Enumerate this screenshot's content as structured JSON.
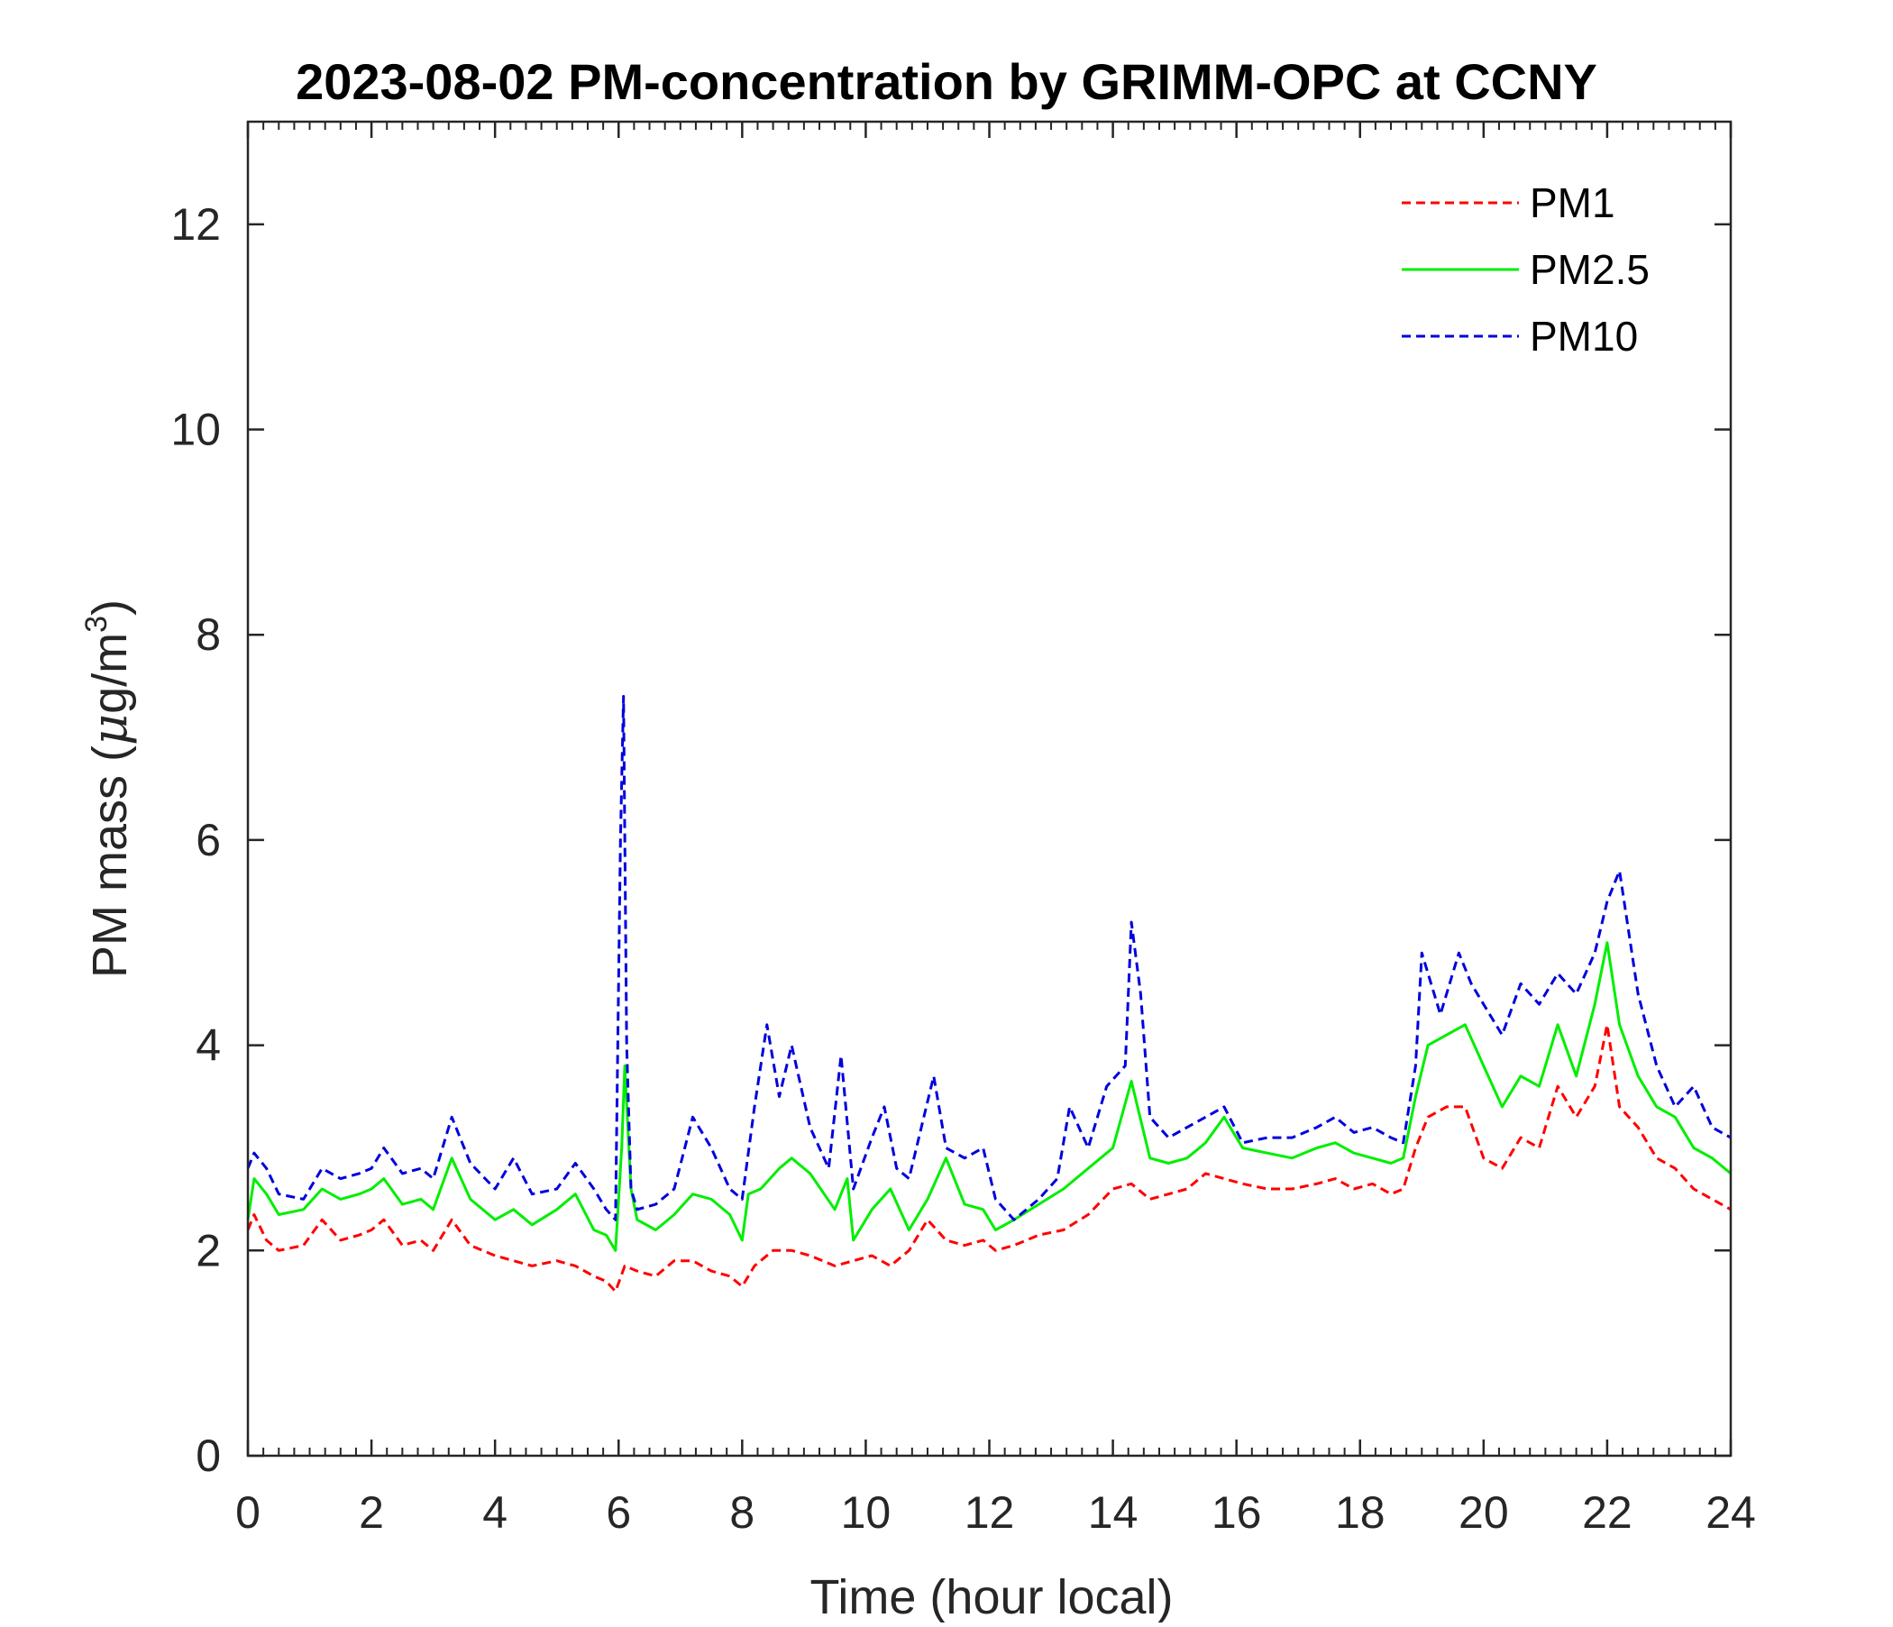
{
  "chart_data": {
    "type": "line",
    "title": "2023-08-02 PM-concentration by GRIMM-OPC at CCNY",
    "xlabel": "Time (hour local)",
    "ylabel": {
      "prefix": "PM mass (",
      "mu": "μ",
      "unit": "g/m",
      "sup": "3",
      "suffix": ")"
    },
    "xlim": [
      0,
      24
    ],
    "ylim": [
      0,
      13
    ],
    "xticks": [
      0,
      2,
      4,
      6,
      8,
      10,
      12,
      14,
      16,
      18,
      20,
      22,
      24
    ],
    "xtick_labels": [
      "0",
      "2",
      "4",
      "6",
      "8",
      "10",
      "12",
      "14",
      "16",
      "18",
      "20",
      "22",
      "24"
    ],
    "yticks": [
      0,
      2,
      4,
      6,
      8,
      10,
      12
    ],
    "ytick_labels": [
      "0",
      "2",
      "4",
      "6",
      "8",
      "10",
      "12"
    ],
    "grid": false,
    "legend_position": "top-right",
    "series": [
      {
        "name": "PM1",
        "color": "#ff0000",
        "style": "dashed",
        "x": [
          0,
          0.1,
          0.3,
          0.5,
          0.9,
          1.2,
          1.5,
          1.8,
          2.0,
          2.2,
          2.5,
          2.8,
          3.0,
          3.3,
          3.6,
          4.0,
          4.3,
          4.6,
          5.0,
          5.3,
          5.6,
          5.8,
          5.95,
          6.1,
          6.3,
          6.6,
          6.9,
          7.2,
          7.5,
          7.8,
          8.0,
          8.2,
          8.5,
          8.8,
          9.1,
          9.5,
          9.8,
          10.1,
          10.4,
          10.7,
          11.0,
          11.3,
          11.6,
          11.9,
          12.1,
          12.4,
          12.8,
          13.2,
          13.6,
          14.0,
          14.3,
          14.6,
          14.9,
          15.2,
          15.5,
          15.8,
          16.1,
          16.5,
          16.9,
          17.3,
          17.6,
          17.9,
          18.2,
          18.5,
          18.7,
          18.9,
          19.1,
          19.4,
          19.7,
          20.0,
          20.3,
          20.6,
          20.9,
          21.2,
          21.5,
          21.8,
          22.0,
          22.2,
          22.5,
          22.8,
          23.1,
          23.4,
          23.7,
          24.0
        ],
        "values": [
          2.2,
          2.35,
          2.1,
          2.0,
          2.05,
          2.3,
          2.1,
          2.15,
          2.2,
          2.3,
          2.05,
          2.1,
          2.0,
          2.3,
          2.05,
          1.95,
          1.9,
          1.85,
          1.9,
          1.85,
          1.75,
          1.7,
          1.6,
          1.85,
          1.8,
          1.75,
          1.9,
          1.9,
          1.8,
          1.75,
          1.65,
          1.85,
          2.0,
          2.0,
          1.95,
          1.85,
          1.9,
          1.95,
          1.85,
          2.0,
          2.3,
          2.1,
          2.05,
          2.1,
          2.0,
          2.05,
          2.15,
          2.2,
          2.35,
          2.6,
          2.65,
          2.5,
          2.55,
          2.6,
          2.75,
          2.7,
          2.65,
          2.6,
          2.6,
          2.65,
          2.7,
          2.6,
          2.65,
          2.55,
          2.6,
          3.0,
          3.3,
          3.4,
          3.4,
          2.9,
          2.8,
          3.1,
          3.0,
          3.6,
          3.3,
          3.6,
          4.2,
          3.4,
          3.2,
          2.9,
          2.8,
          2.6,
          2.5,
          2.4
        ]
      },
      {
        "name": "PM2.5",
        "color": "#00ee00",
        "style": "solid",
        "x": [
          0,
          0.1,
          0.3,
          0.5,
          0.9,
          1.2,
          1.5,
          1.8,
          2.0,
          2.2,
          2.5,
          2.8,
          3.0,
          3.3,
          3.6,
          4.0,
          4.3,
          4.6,
          5.0,
          5.3,
          5.6,
          5.8,
          5.95,
          6.05,
          6.1,
          6.2,
          6.3,
          6.6,
          6.9,
          7.2,
          7.5,
          7.8,
          8.0,
          8.1,
          8.3,
          8.6,
          8.8,
          9.1,
          9.5,
          9.7,
          9.8,
          10.1,
          10.4,
          10.7,
          11.0,
          11.3,
          11.6,
          11.9,
          12.1,
          12.4,
          12.8,
          13.2,
          13.6,
          14.0,
          14.3,
          14.6,
          14.9,
          15.2,
          15.5,
          15.8,
          16.1,
          16.5,
          16.9,
          17.3,
          17.6,
          17.9,
          18.2,
          18.5,
          18.7,
          18.9,
          19.1,
          19.4,
          19.7,
          20.0,
          20.3,
          20.6,
          20.9,
          21.2,
          21.5,
          21.8,
          22.0,
          22.2,
          22.5,
          22.8,
          23.1,
          23.4,
          23.7,
          24.0
        ],
        "values": [
          2.3,
          2.7,
          2.55,
          2.35,
          2.4,
          2.6,
          2.5,
          2.55,
          2.6,
          2.7,
          2.45,
          2.5,
          2.4,
          2.9,
          2.5,
          2.3,
          2.4,
          2.25,
          2.4,
          2.55,
          2.2,
          2.15,
          2.0,
          3.0,
          3.8,
          2.6,
          2.3,
          2.2,
          2.35,
          2.55,
          2.5,
          2.35,
          2.1,
          2.55,
          2.6,
          2.8,
          2.9,
          2.75,
          2.4,
          2.7,
          2.1,
          2.4,
          2.6,
          2.2,
          2.5,
          2.9,
          2.45,
          2.4,
          2.2,
          2.3,
          2.45,
          2.6,
          2.8,
          3.0,
          3.65,
          2.9,
          2.85,
          2.9,
          3.05,
          3.3,
          3.0,
          2.95,
          2.9,
          3.0,
          3.05,
          2.95,
          2.9,
          2.85,
          2.9,
          3.5,
          4.0,
          4.1,
          4.2,
          3.8,
          3.4,
          3.7,
          3.6,
          4.2,
          3.7,
          4.4,
          5.0,
          4.2,
          3.7,
          3.4,
          3.3,
          3.0,
          2.9,
          2.75
        ]
      },
      {
        "name": "PM10",
        "color": "#0000dd",
        "style": "dashed",
        "x": [
          0,
          0.1,
          0.3,
          0.5,
          0.9,
          1.2,
          1.5,
          1.8,
          2.0,
          2.2,
          2.5,
          2.8,
          3.0,
          3.3,
          3.6,
          4.0,
          4.3,
          4.6,
          5.0,
          5.3,
          5.6,
          5.8,
          5.95,
          6.03,
          6.08,
          6.13,
          6.2,
          6.3,
          6.6,
          6.9,
          7.2,
          7.5,
          7.8,
          8.0,
          8.2,
          8.4,
          8.6,
          8.8,
          9.1,
          9.4,
          9.6,
          9.8,
          10.1,
          10.3,
          10.5,
          10.7,
          10.9,
          11.1,
          11.3,
          11.6,
          11.9,
          12.1,
          12.4,
          12.8,
          13.1,
          13.3,
          13.6,
          13.9,
          14.2,
          14.3,
          14.45,
          14.6,
          14.9,
          15.2,
          15.5,
          15.8,
          16.1,
          16.5,
          16.9,
          17.3,
          17.6,
          17.9,
          18.2,
          18.5,
          18.7,
          18.9,
          19.0,
          19.3,
          19.6,
          19.8,
          20.0,
          20.3,
          20.6,
          20.9,
          21.2,
          21.5,
          21.8,
          22.0,
          22.2,
          22.5,
          22.8,
          23.1,
          23.4,
          23.7,
          24.0
        ],
        "values": [
          2.8,
          2.95,
          2.8,
          2.55,
          2.5,
          2.8,
          2.7,
          2.75,
          2.8,
          3.0,
          2.75,
          2.8,
          2.7,
          3.3,
          2.85,
          2.6,
          2.9,
          2.55,
          2.6,
          2.85,
          2.6,
          2.4,
          2.3,
          6.0,
          7.4,
          4.0,
          2.6,
          2.4,
          2.45,
          2.6,
          3.3,
          3.0,
          2.6,
          2.5,
          3.4,
          4.2,
          3.5,
          4.0,
          3.2,
          2.8,
          3.9,
          2.6,
          3.1,
          3.4,
          2.8,
          2.7,
          3.2,
          3.7,
          3.0,
          2.9,
          3.0,
          2.5,
          2.3,
          2.5,
          2.7,
          3.4,
          3.0,
          3.6,
          3.8,
          5.2,
          4.5,
          3.3,
          3.1,
          3.2,
          3.3,
          3.4,
          3.05,
          3.1,
          3.1,
          3.2,
          3.3,
          3.15,
          3.2,
          3.1,
          3.05,
          3.8,
          4.9,
          4.3,
          4.9,
          4.6,
          4.4,
          4.1,
          4.6,
          4.4,
          4.7,
          4.5,
          4.9,
          5.4,
          5.7,
          4.5,
          3.8,
          3.4,
          3.6,
          3.2,
          3.1
        ]
      }
    ]
  }
}
